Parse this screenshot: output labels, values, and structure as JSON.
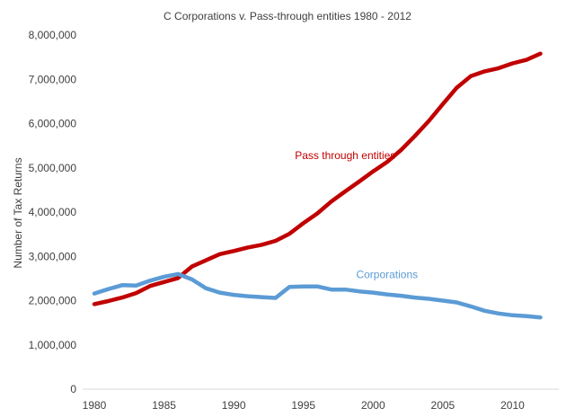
{
  "chart_data": {
    "type": "line",
    "title": "C Corporations v. Pass-through entities 1980 - 2012",
    "xlabel": "",
    "ylabel": "Number of Tax Returns",
    "x": [
      1980,
      1981,
      1982,
      1983,
      1984,
      1985,
      1986,
      1987,
      1988,
      1989,
      1990,
      1991,
      1992,
      1993,
      1994,
      1995,
      1996,
      1997,
      1998,
      1999,
      2000,
      2001,
      2002,
      2003,
      2004,
      2005,
      2006,
      2007,
      2008,
      2009,
      2010,
      2011,
      2012
    ],
    "xlim": [
      1980,
      2013
    ],
    "ylim": [
      0,
      8000000
    ],
    "x_ticks": [
      "1980",
      "1985",
      "1990",
      "1995",
      "2000",
      "2005",
      "2010"
    ],
    "x_tick_values": [
      1980,
      1985,
      1990,
      1995,
      2000,
      2005,
      2010
    ],
    "y_ticks": [
      "0",
      "1,000,000",
      "2,000,000",
      "3,000,000",
      "4,000,000",
      "5,000,000",
      "6,000,000",
      "7,000,000",
      "8,000,000"
    ],
    "y_tick_values": [
      0,
      1000000,
      2000000,
      3000000,
      4000000,
      5000000,
      6000000,
      7000000,
      8000000
    ],
    "grid": false,
    "legend": "none",
    "series": [
      {
        "name": "Pass through entities",
        "color": "#C00000",
        "label_position": [
          1998,
          5200000
        ],
        "values": [
          1920000,
          1990000,
          2070000,
          2170000,
          2330000,
          2420000,
          2510000,
          2770000,
          2910000,
          3050000,
          3120000,
          3200000,
          3260000,
          3350000,
          3510000,
          3750000,
          3970000,
          4240000,
          4470000,
          4690000,
          4920000,
          5130000,
          5400000,
          5720000,
          6060000,
          6440000,
          6810000,
          7070000,
          7180000,
          7250000,
          7360000,
          7440000,
          7580000
        ]
      },
      {
        "name": "Corporations",
        "color": "#5B9BD5",
        "label_position": [
          2001,
          2510000
        ],
        "values": [
          2160000,
          2260000,
          2350000,
          2340000,
          2450000,
          2540000,
          2600000,
          2480000,
          2280000,
          2180000,
          2130000,
          2100000,
          2080000,
          2060000,
          2310000,
          2320000,
          2320000,
          2250000,
          2250000,
          2210000,
          2180000,
          2140000,
          2110000,
          2070000,
          2040000,
          2000000,
          1960000,
          1870000,
          1770000,
          1710000,
          1670000,
          1650000,
          1620000
        ]
      }
    ]
  }
}
